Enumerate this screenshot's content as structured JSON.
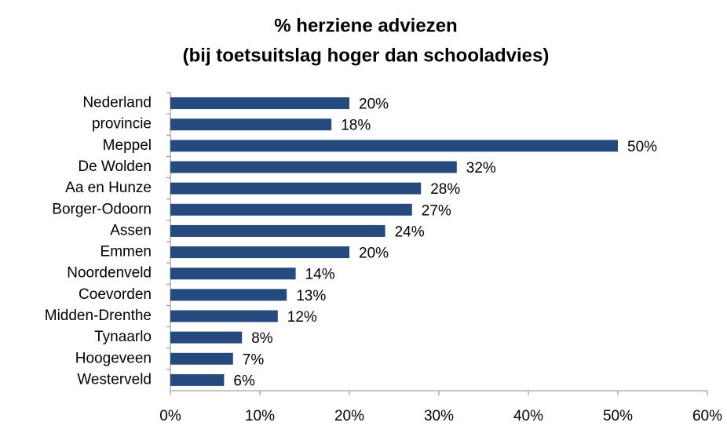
{
  "chart_data": {
    "type": "bar",
    "orientation": "horizontal",
    "title": "% herziene adviezen",
    "subtitle": "(bij toetsuitslag hoger dan schooladvies)",
    "categories": [
      "Nederland",
      "provincie",
      "Meppel",
      "De Wolden",
      "Aa en Hunze",
      "Borger-Odoorn",
      "Assen",
      "Emmen",
      "Noordenveld",
      "Coevorden",
      "Midden-Drenthe",
      "Tynaarlo",
      "Hoogeveen",
      "Westerveld"
    ],
    "values": [
      20,
      18,
      50,
      32,
      28,
      27,
      24,
      20,
      14,
      13,
      12,
      8,
      7,
      6
    ],
    "value_labels": [
      "20%",
      "18%",
      "50%",
      "32%",
      "28%",
      "27%",
      "24%",
      "20%",
      "14%",
      "13%",
      "12%",
      "8%",
      "7%",
      "6%"
    ],
    "color": "#254a7e",
    "xlim": [
      0,
      60
    ],
    "xticks": [
      {
        "value": 0,
        "label": "0%"
      },
      {
        "value": 10,
        "label": "10%"
      },
      {
        "value": 20,
        "label": "20%"
      },
      {
        "value": 30,
        "label": "30%"
      },
      {
        "value": 40,
        "label": "40%"
      },
      {
        "value": 50,
        "label": "50%"
      },
      {
        "value": 60,
        "label": "60%"
      }
    ],
    "grid": false
  }
}
